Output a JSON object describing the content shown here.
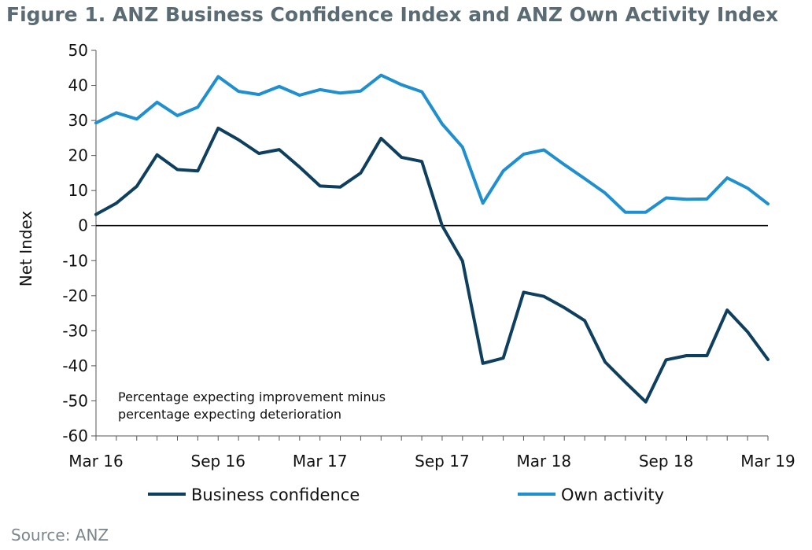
{
  "title": "Figure 1. ANZ Business Confidence Index and ANZ Own Activity Index",
  "source": "Source: ANZ",
  "chart_data": {
    "type": "line",
    "ylabel": "Net Index",
    "xlabel": "",
    "ylim": [
      -60,
      50
    ],
    "yticks": [
      "50",
      "40",
      "30",
      "20",
      "10",
      "0",
      "-10",
      "-20",
      "-30",
      "-40",
      "-50",
      "-60"
    ],
    "ytick_values": [
      50,
      40,
      30,
      20,
      10,
      0,
      -10,
      -20,
      -30,
      -40,
      -50,
      -60
    ],
    "x": [
      "Mar 16",
      "Apr 16",
      "May 16",
      "Jun 16",
      "Jul 16",
      "Aug 16",
      "Sep 16",
      "Oct 16",
      "Nov 16",
      "Dec 16",
      "Feb 17",
      "Mar 17",
      "Apr 17",
      "May 17",
      "Jun 17",
      "Jul 17",
      "Aug 17",
      "Sep 17",
      "Oct 17",
      "Nov 17",
      "Dec 17",
      "Feb 18",
      "Mar 18",
      "Apr 18",
      "May 18",
      "Jun 18",
      "Jul 18",
      "Aug 18",
      "Sep 18",
      "Oct 18",
      "Nov 18",
      "Dec 18",
      "Feb 19",
      "Mar 19"
    ],
    "xtick_labels": [
      {
        "label": "Mar 16",
        "index": 0
      },
      {
        "label": "Sep 16",
        "index": 6
      },
      {
        "label": "Mar 17",
        "index": 11
      },
      {
        "label": "Sep 17",
        "index": 17
      },
      {
        "label": "Mar 18",
        "index": 22
      },
      {
        "label": "Sep 18",
        "index": 28
      },
      {
        "label": "Mar 19",
        "index": 33
      }
    ],
    "series": [
      {
        "name": "Business confidence",
        "color": "#0e3f5e",
        "values": [
          3.2,
          6.4,
          11.2,
          20.2,
          16.0,
          15.6,
          27.8,
          24.5,
          20.6,
          21.7,
          16.7,
          11.3,
          11.0,
          15.0,
          24.9,
          19.5,
          18.3,
          0.0,
          -10.1,
          -39.3,
          -37.8,
          -19.0,
          -20.2,
          -23.4,
          -27.1,
          -38.9,
          -44.7,
          -50.3,
          -38.3,
          -37.1,
          -37.1,
          -24.1,
          -30.3,
          -38.2
        ]
      },
      {
        "name": "Own activity",
        "color": "#1f8fcf",
        "values": [
          29.3,
          32.2,
          30.4,
          35.2,
          31.4,
          33.8,
          42.5,
          38.3,
          37.4,
          39.7,
          37.2,
          38.8,
          37.8,
          38.4,
          42.9,
          40.2,
          38.2,
          29.0,
          22.4,
          6.4,
          15.6,
          20.4,
          21.6,
          17.4,
          13.4,
          9.3,
          3.8,
          3.8,
          7.9,
          7.5,
          7.6,
          13.6,
          10.7,
          6.2
        ]
      }
    ],
    "annotation": [
      "Percentage expecting improvement minus",
      "percentage expecting deterioration"
    ],
    "legend_position": "bottom",
    "grid": false
  }
}
